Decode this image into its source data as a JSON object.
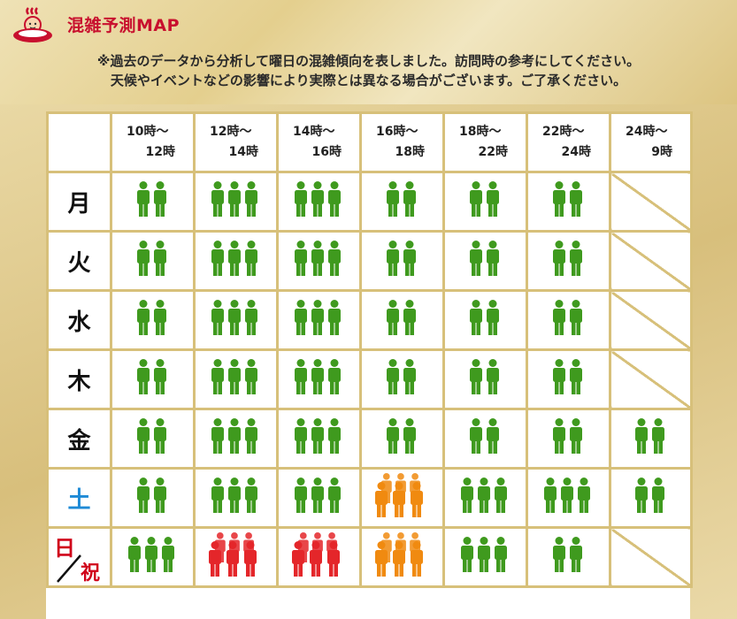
{
  "header": {
    "title": "混雑予測MAP",
    "note_line1": "※過去のデータから分析して曜日の混雑傾向を表しました。訪問時の参考にしてください。",
    "note_line2": "天候やイベントなどの影響により実際とは異なる場合がございます。ご了承ください。"
  },
  "colors": {
    "low": "#3f9a1e",
    "busy": "#f08a10",
    "very_busy": "#e4262a",
    "grid": "#d7c07a",
    "title": "#c8102e",
    "saturday": "#1e8ad6",
    "sunday": "#d0001a"
  },
  "time_slots": [
    {
      "start": "10時〜",
      "end": "12時"
    },
    {
      "start": "12時〜",
      "end": "14時"
    },
    {
      "start": "14時〜",
      "end": "16時"
    },
    {
      "start": "16時〜",
      "end": "18時"
    },
    {
      "start": "18時〜",
      "end": "22時"
    },
    {
      "start": "22時〜",
      "end": "24時"
    },
    {
      "start": "24時〜",
      "end": "9時"
    }
  ],
  "days": [
    {
      "key": "mon",
      "label": "月",
      "levels": [
        2,
        3,
        3,
        2,
        2,
        2,
        null
      ],
      "colors": [
        "low",
        "low",
        "low",
        "low",
        "low",
        "low",
        null
      ]
    },
    {
      "key": "tue",
      "label": "火",
      "levels": [
        2,
        3,
        3,
        2,
        2,
        2,
        null
      ],
      "colors": [
        "low",
        "low",
        "low",
        "low",
        "low",
        "low",
        null
      ]
    },
    {
      "key": "wed",
      "label": "水",
      "levels": [
        2,
        3,
        3,
        2,
        2,
        2,
        null
      ],
      "colors": [
        "low",
        "low",
        "low",
        "low",
        "low",
        "low",
        null
      ]
    },
    {
      "key": "thu",
      "label": "木",
      "levels": [
        2,
        3,
        3,
        2,
        2,
        2,
        null
      ],
      "colors": [
        "low",
        "low",
        "low",
        "low",
        "low",
        "low",
        null
      ]
    },
    {
      "key": "fri",
      "label": "金",
      "levels": [
        2,
        3,
        3,
        2,
        2,
        2,
        2
      ],
      "colors": [
        "low",
        "low",
        "low",
        "low",
        "low",
        "low",
        "low"
      ]
    },
    {
      "key": "sat",
      "label": "土",
      "levels": [
        2,
        3,
        3,
        5,
        3,
        3,
        2
      ],
      "colors": [
        "low",
        "low",
        "low",
        "busy",
        "low",
        "low",
        "low"
      ]
    },
    {
      "key": "sun",
      "label": "日",
      "label2": "祝",
      "levels": [
        3,
        5,
        5,
        5,
        3,
        2,
        null
      ],
      "colors": [
        "low",
        "very_busy",
        "very_busy",
        "busy",
        "low",
        "low",
        null
      ]
    }
  ]
}
